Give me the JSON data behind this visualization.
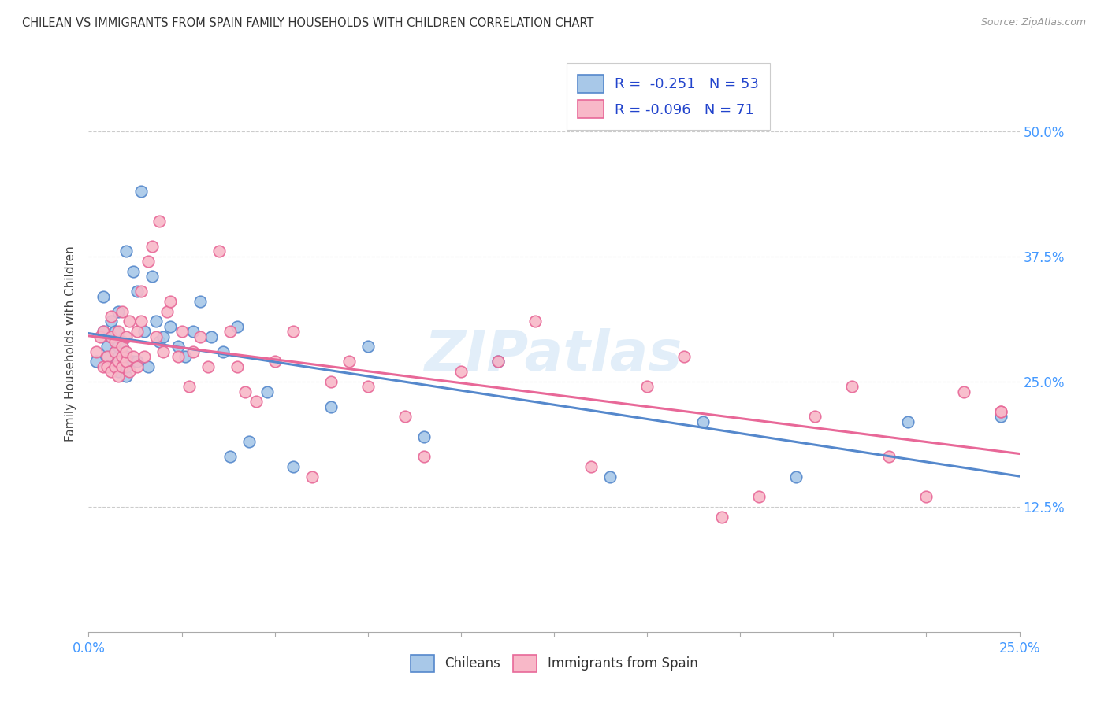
{
  "title": "CHILEAN VS IMMIGRANTS FROM SPAIN FAMILY HOUSEHOLDS WITH CHILDREN CORRELATION CHART",
  "source": "Source: ZipAtlas.com",
  "ylabel": "Family Households with Children",
  "ytick_values": [
    0.125,
    0.25,
    0.375,
    0.5
  ],
  "ytick_labels": [
    "12.5%",
    "25.0%",
    "37.5%",
    "50.0%"
  ],
  "xlim": [
    0.0,
    0.25
  ],
  "ylim": [
    0.0,
    0.575
  ],
  "legend_r1": "R =  -0.251",
  "legend_n1": "N = 53",
  "legend_r2": "R = -0.096",
  "legend_n2": "N = 71",
  "color_blue": "#a8c8e8",
  "color_pink": "#f8b8c8",
  "line_color_blue": "#5588cc",
  "line_color_pink": "#e86898",
  "watermark": "ZIPatlas",
  "blue_scatter_x": [
    0.002,
    0.004,
    0.004,
    0.005,
    0.005,
    0.006,
    0.006,
    0.007,
    0.007,
    0.007,
    0.008,
    0.008,
    0.008,
    0.008,
    0.009,
    0.009,
    0.009,
    0.01,
    0.01,
    0.01,
    0.01,
    0.012,
    0.012,
    0.013,
    0.013,
    0.014,
    0.015,
    0.016,
    0.017,
    0.018,
    0.019,
    0.02,
    0.022,
    0.024,
    0.026,
    0.028,
    0.03,
    0.033,
    0.036,
    0.038,
    0.04,
    0.043,
    0.048,
    0.055,
    0.065,
    0.075,
    0.09,
    0.11,
    0.14,
    0.165,
    0.19,
    0.22,
    0.245
  ],
  "blue_scatter_y": [
    0.27,
    0.3,
    0.335,
    0.275,
    0.285,
    0.295,
    0.31,
    0.265,
    0.28,
    0.3,
    0.26,
    0.275,
    0.285,
    0.32,
    0.27,
    0.285,
    0.29,
    0.255,
    0.265,
    0.275,
    0.38,
    0.27,
    0.36,
    0.34,
    0.27,
    0.44,
    0.3,
    0.265,
    0.355,
    0.31,
    0.29,
    0.295,
    0.305,
    0.285,
    0.275,
    0.3,
    0.33,
    0.295,
    0.28,
    0.175,
    0.305,
    0.19,
    0.24,
    0.165,
    0.225,
    0.285,
    0.195,
    0.27,
    0.155,
    0.21,
    0.155,
    0.21,
    0.215
  ],
  "pink_scatter_x": [
    0.002,
    0.003,
    0.004,
    0.004,
    0.005,
    0.005,
    0.006,
    0.006,
    0.006,
    0.007,
    0.007,
    0.007,
    0.008,
    0.008,
    0.008,
    0.009,
    0.009,
    0.009,
    0.009,
    0.01,
    0.01,
    0.01,
    0.011,
    0.011,
    0.012,
    0.013,
    0.013,
    0.014,
    0.014,
    0.015,
    0.016,
    0.017,
    0.018,
    0.019,
    0.02,
    0.021,
    0.022,
    0.024,
    0.025,
    0.027,
    0.028,
    0.03,
    0.032,
    0.035,
    0.038,
    0.04,
    0.042,
    0.045,
    0.05,
    0.055,
    0.06,
    0.065,
    0.07,
    0.075,
    0.085,
    0.09,
    0.1,
    0.11,
    0.12,
    0.135,
    0.15,
    0.16,
    0.17,
    0.18,
    0.195,
    0.205,
    0.215,
    0.225,
    0.235,
    0.245,
    0.245
  ],
  "pink_scatter_y": [
    0.28,
    0.295,
    0.265,
    0.3,
    0.275,
    0.265,
    0.26,
    0.295,
    0.315,
    0.265,
    0.28,
    0.29,
    0.255,
    0.27,
    0.3,
    0.265,
    0.275,
    0.285,
    0.32,
    0.27,
    0.28,
    0.295,
    0.26,
    0.31,
    0.275,
    0.265,
    0.3,
    0.31,
    0.34,
    0.275,
    0.37,
    0.385,
    0.295,
    0.41,
    0.28,
    0.32,
    0.33,
    0.275,
    0.3,
    0.245,
    0.28,
    0.295,
    0.265,
    0.38,
    0.3,
    0.265,
    0.24,
    0.23,
    0.27,
    0.3,
    0.155,
    0.25,
    0.27,
    0.245,
    0.215,
    0.175,
    0.26,
    0.27,
    0.31,
    0.165,
    0.245,
    0.275,
    0.115,
    0.135,
    0.215,
    0.245,
    0.175,
    0.135,
    0.24,
    0.22,
    0.22
  ]
}
